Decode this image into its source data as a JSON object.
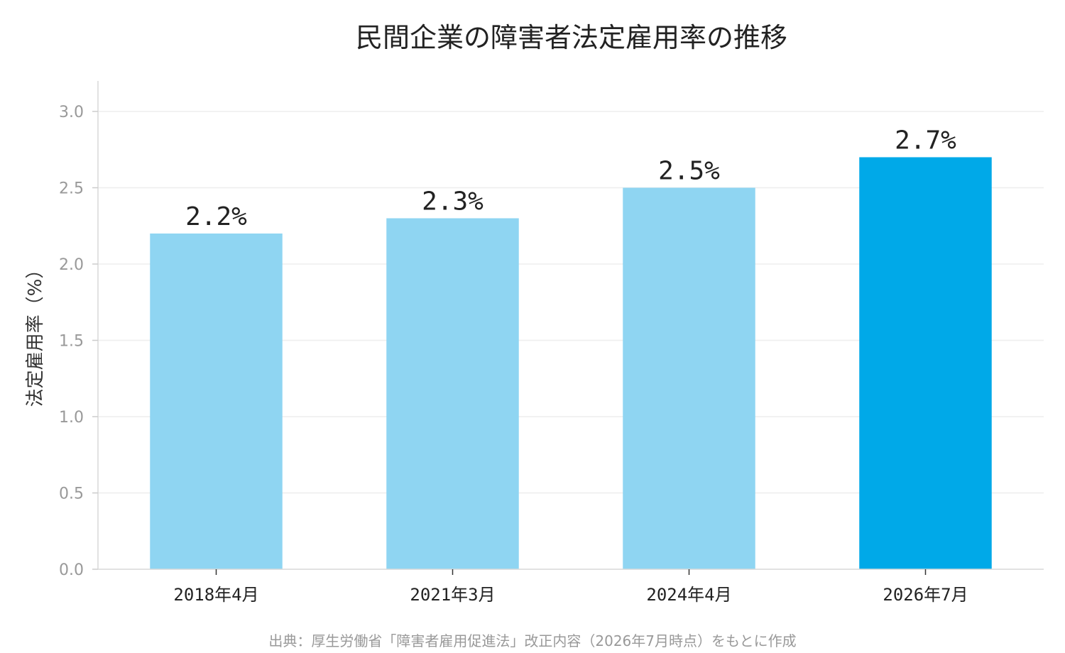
{
  "chart_data": {
    "type": "bar",
    "title": "民間企業の障害者法定雇用率の推移",
    "ylabel": "法定雇用率（%）",
    "xlabel": "",
    "categories": [
      "2018年4月",
      "2021年3月",
      "2024年4月",
      "2026年7月"
    ],
    "values": [
      2.2,
      2.3,
      2.5,
      2.7
    ],
    "value_labels": [
      "2.2%",
      "2.3%",
      "2.5%",
      "2.7%"
    ],
    "ylim": [
      0,
      3.2
    ],
    "yticks": [
      0.0,
      0.5,
      1.0,
      1.5,
      2.0,
      2.5,
      3.0
    ],
    "ytick_labels": [
      "0.0",
      "0.5",
      "1.0",
      "1.5",
      "2.0",
      "2.5",
      "3.0"
    ],
    "grid": "horizontal",
    "colors": {
      "bar": "#8fd5f2",
      "highlight_bar": "#00a9e8",
      "grid": "#eeeeee",
      "axis": "#d9d9d9"
    },
    "highlight_index": 3,
    "source": "出典：厚生労働省「障害者雇用促進法」改正内容（2026年7月時点）をもとに作成"
  }
}
